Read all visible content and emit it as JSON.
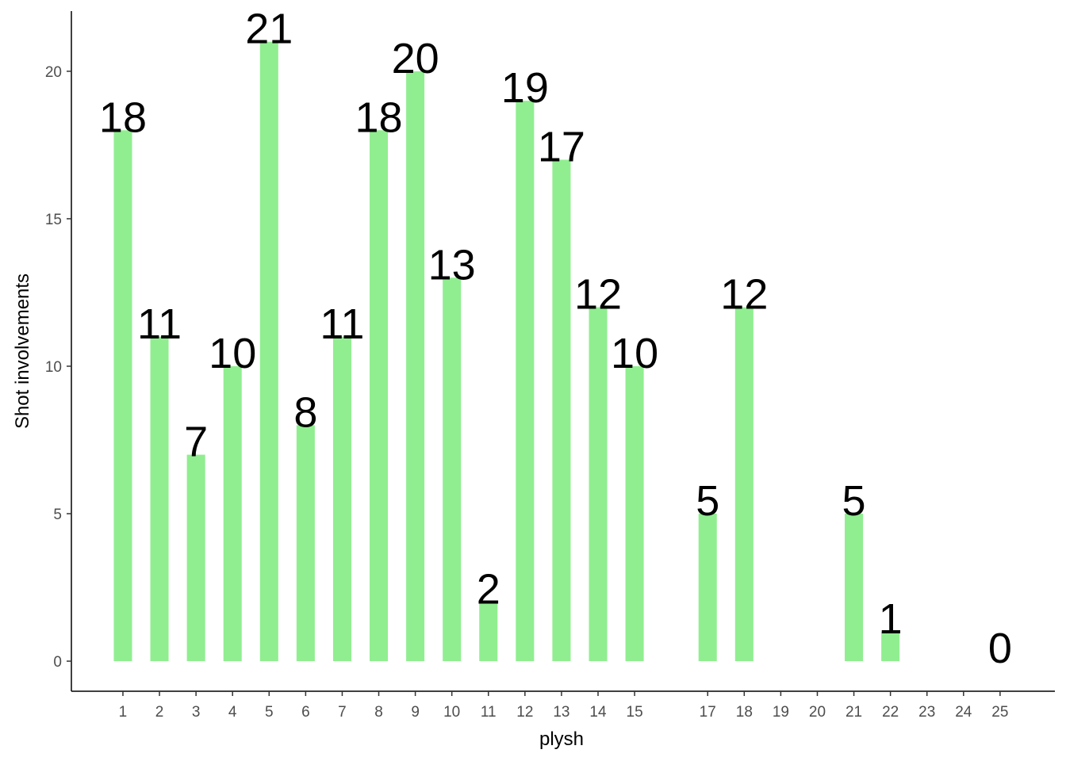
{
  "chart_data": {
    "type": "bar",
    "x_label": "plysh",
    "y_label": "Shot involvements",
    "x": [
      1,
      2,
      3,
      4,
      5,
      6,
      7,
      8,
      9,
      10,
      11,
      12,
      13,
      14,
      15,
      17,
      18,
      21,
      22,
      25
    ],
    "values": [
      18,
      11,
      7,
      10,
      21,
      8,
      11,
      18,
      20,
      13,
      2,
      19,
      17,
      12,
      10,
      5,
      12,
      5,
      1,
      0
    ],
    "color": "#90ee90",
    "xlim": [
      -0.41,
      26.5
    ],
    "xticks": [
      1,
      2,
      3,
      4,
      5,
      6,
      7,
      8,
      9,
      10,
      11,
      12,
      13,
      14,
      15,
      17,
      18,
      19,
      20,
      21,
      22,
      23,
      24,
      25
    ],
    "ylim": [
      -1.02,
      22.04
    ],
    "yticks": [
      0,
      5,
      10,
      15,
      20
    ]
  }
}
